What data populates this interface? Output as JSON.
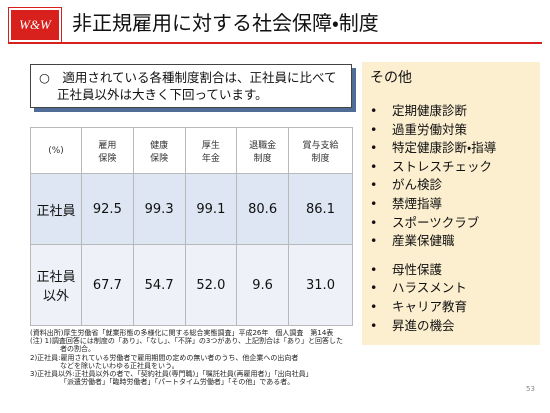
{
  "header": {
    "logo": "W&W",
    "title": "非正規雇用に対する社会保障・制度"
  },
  "callout": {
    "lines": [
      "○　適用されている各種制度割合は、正社員に比べて",
      "正社員以外は大きく下回っています。"
    ]
  },
  "table": {
    "columns": [
      [
        "(%)"
      ],
      [
        "雇用",
        "保険"
      ],
      [
        "健康",
        "保険"
      ],
      [
        "厚生",
        "年金"
      ],
      [
        "退職金",
        "制度"
      ],
      [
        "賞与支給",
        "制度"
      ]
    ],
    "rows": [
      {
        "label": [
          "正社員"
        ],
        "cells": [
          "92.5",
          "99.3",
          "99.1",
          "80.6",
          "86.1"
        ]
      },
      {
        "label": [
          "正社員",
          "以外"
        ],
        "cells": [
          "67.7",
          "54.7",
          "52.0",
          "9.6",
          "31.0"
        ]
      }
    ]
  },
  "notes": [
    "(資料出所)厚生労働省「就業形態の多様化に関する総合実態調査」平成26年　個人調査　第14表",
    "(注) 1)調査回答には制度の「あり」、「なし」、「不詳」の3つがあり、上記割合は「あり」と回答した",
    "者の割合。",
    "2)正社員:雇用されている労働者で雇用期間の定めの無い者のうち、他企業への出向者",
    "などを除いたいわゆる正社員をいう。",
    "3)正社員以外:正社員以外の者で、「契約社員(専門職)」「嘱託社員(再雇用者)」「出向社員」",
    "「派遣労働者」「臨時労働者」「パートタイム労働者」「その他」である者。"
  ],
  "side": {
    "title": "その他",
    "groups": [
      [
        "定期健康診断",
        "過重労働対策",
        "特定健康診断・指導",
        "ストレスチェック",
        "がん検診",
        "禁煙指導",
        "スポーツクラブ",
        "産業保健職"
      ],
      [
        "母性保護",
        "ハラスメント",
        "キャリア教育",
        "昇進の機会"
      ]
    ]
  },
  "page_number": "53"
}
